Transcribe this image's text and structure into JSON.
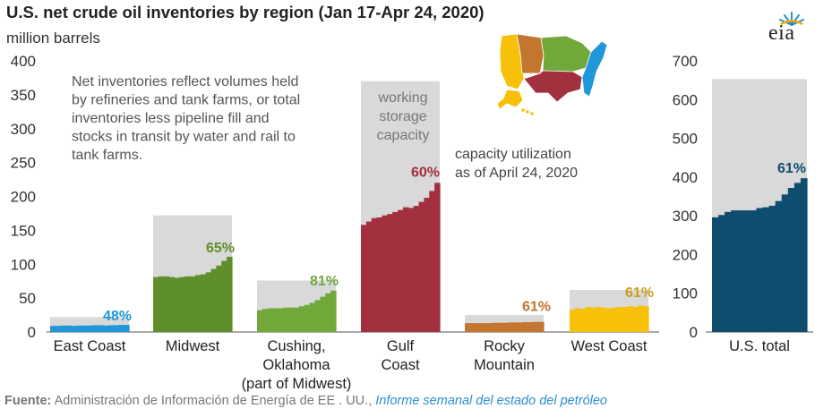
{
  "header": {
    "title": "U.S. net crude oil inventories by region (Jan 17-Apr 24, 2020)",
    "subtitle": "million barrels",
    "logo_text": "eia"
  },
  "colors": {
    "capacity": "#d9d9d9",
    "east_coast": "#1f97d8",
    "midwest": "#5e8f2a",
    "cushing": "#70a83a",
    "gulf_coast": "#a3303f",
    "rocky_mountain": "#c2762e",
    "west_coast": "#f7c10a",
    "us_total": "#0f4d6e",
    "label_west": "#c99e1c",
    "axis": "#555555"
  },
  "chart_data": [
    {
      "type": "bar",
      "note": "Net inventories reflect volumes held by refineries and tank farms, or total inventories less pipeline fill and stocks in transit by water and rail to tank farms.",
      "annotation_capacity": "working storage capacity",
      "annotation_utilization": "capacity utilization as of April 24, 2020",
      "ylim": [
        0,
        400
      ],
      "yticks": [
        0,
        50,
        100,
        150,
        200,
        250,
        300,
        350,
        400
      ],
      "categories": [
        {
          "name": "East Coast",
          "label_lines": [
            "East Coast"
          ],
          "capacity": 22,
          "utilization_label": "48%",
          "weekly": [
            9,
            9,
            9.5,
            9.5,
            9,
            9.5,
            9.5,
            9.5,
            10,
            10,
            9.5,
            10,
            10,
            10.5,
            10.5
          ]
        },
        {
          "name": "Midwest",
          "label_lines": [
            "Midwest"
          ],
          "capacity": 172,
          "utilization_label": "65%",
          "weekly": [
            81,
            82,
            82,
            81,
            80,
            81,
            82,
            82,
            84,
            85,
            88,
            93,
            98,
            105,
            111
          ]
        },
        {
          "name": "Cushing, Oklahoma (part of Midwest)",
          "label_lines": [
            "Cushing,",
            "Oklahoma",
            "(part of Midwest)"
          ],
          "capacity": 76,
          "utilization_label": "81%",
          "weekly": [
            32,
            34,
            35,
            35,
            35,
            36,
            36,
            36,
            38,
            40,
            43,
            47,
            52,
            57,
            61
          ]
        },
        {
          "name": "Gulf Coast",
          "label_lines": [
            "Gulf",
            "Coast"
          ],
          "capacity": 370,
          "utilization_label": "60%",
          "weekly": [
            158,
            163,
            168,
            169,
            172,
            174,
            177,
            180,
            184,
            183,
            186,
            192,
            198,
            208,
            220
          ]
        },
        {
          "name": "Rocky Mountain",
          "label_lines": [
            "Rocky",
            "Mountain"
          ],
          "capacity": 25,
          "utilization_label": "61%",
          "weekly": [
            13,
            13,
            13,
            13,
            13,
            13.5,
            13.5,
            13.5,
            14,
            14,
            14,
            14.5,
            14.5,
            15,
            15
          ]
        },
        {
          "name": "West Coast",
          "label_lines": [
            "West Coast"
          ],
          "capacity": 62,
          "utilization_label": "61%",
          "weekly": [
            33,
            35,
            34,
            37,
            36,
            37,
            36,
            35,
            36,
            37,
            37,
            38,
            37,
            39,
            38
          ]
        }
      ]
    },
    {
      "type": "bar",
      "ylim": [
        0,
        700
      ],
      "yticks": [
        0,
        100,
        200,
        300,
        400,
        500,
        600,
        700
      ],
      "categories": [
        {
          "name": "U.S. total",
          "label_lines": [
            "U.S. total"
          ],
          "capacity": 653,
          "utilization_label": "61%",
          "weekly": [
            296,
            302,
            310,
            314,
            314,
            314,
            314,
            320,
            322,
            326,
            338,
            355,
            372,
            385,
            397
          ]
        }
      ]
    }
  ],
  "source": {
    "label": "Fuente:",
    "text": "Administración de Información de Energía de EE . UU.,",
    "publication": "Informe semanal del estado del petróleo"
  }
}
